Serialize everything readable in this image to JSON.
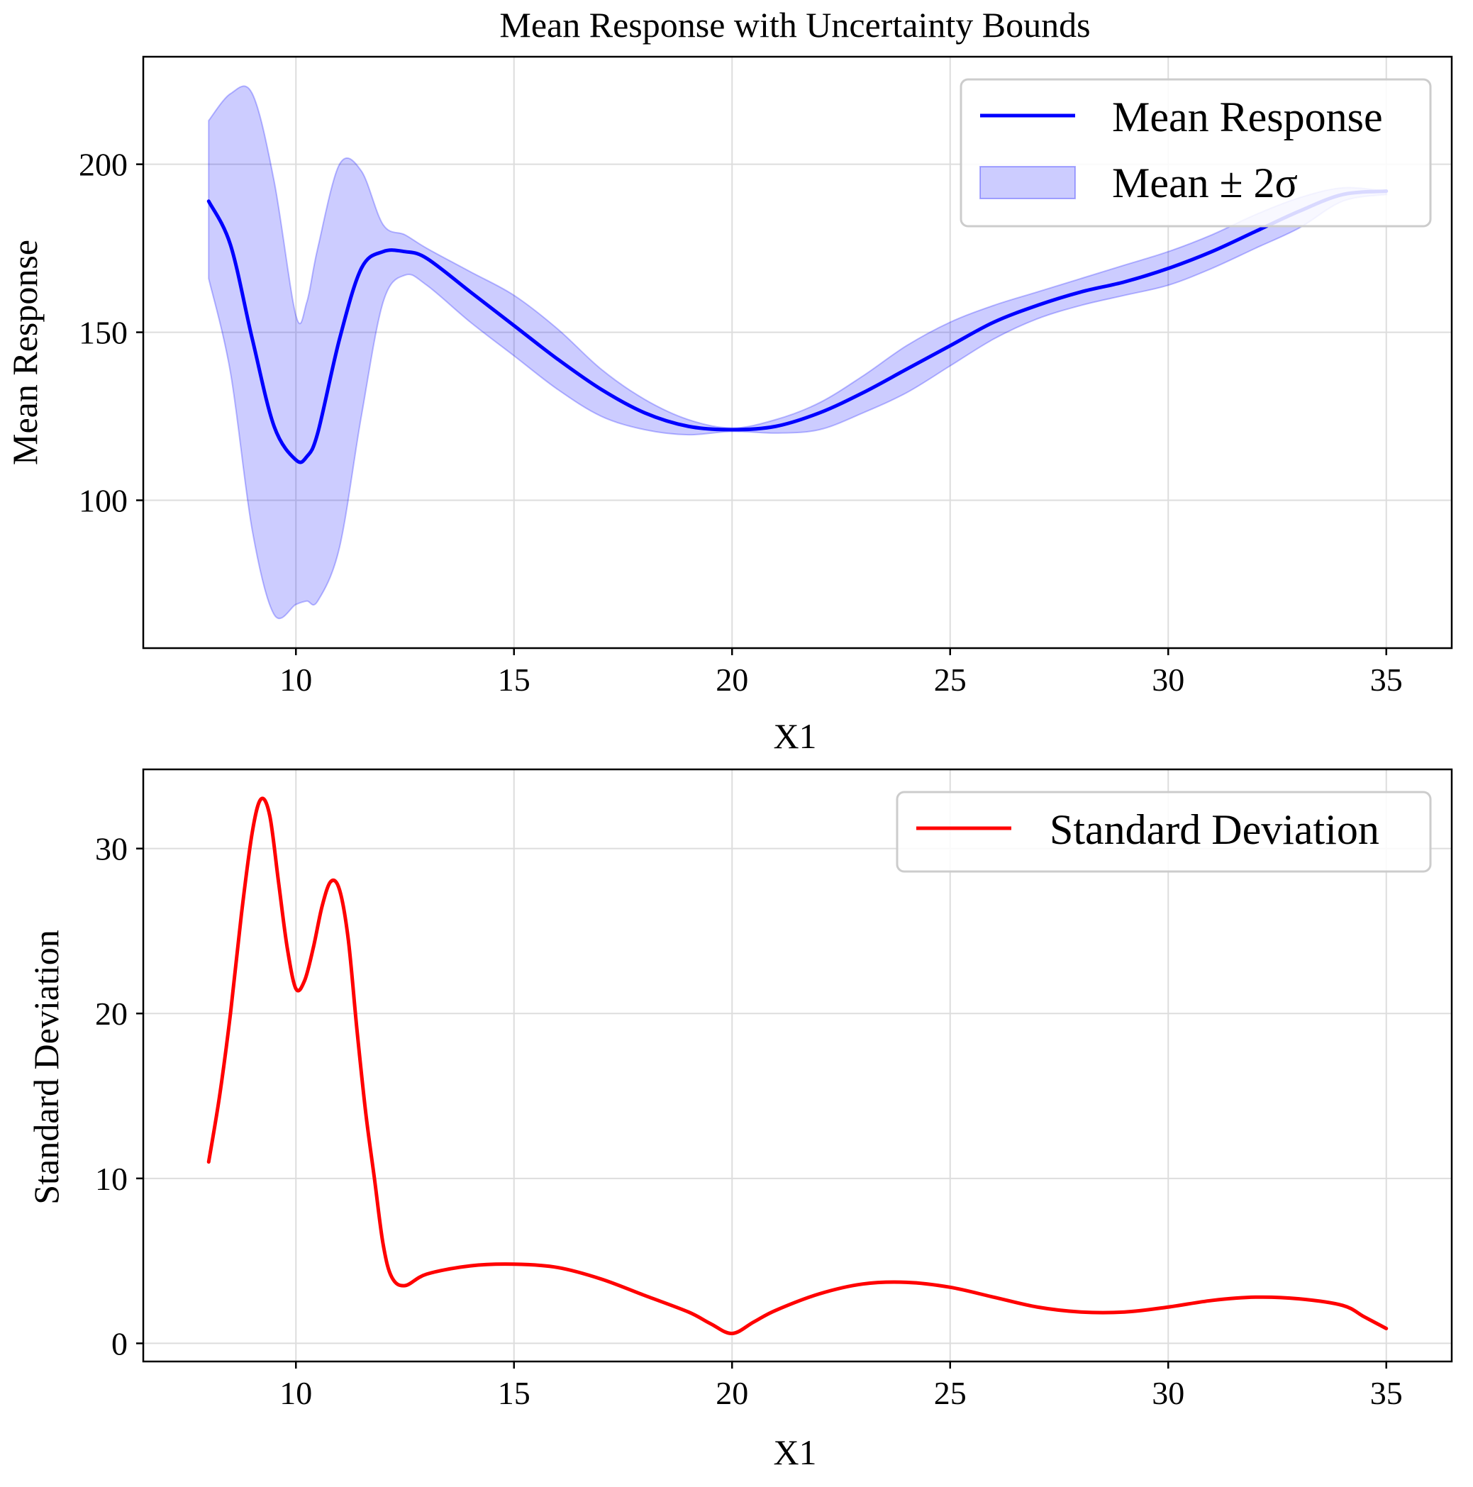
{
  "chart_data": [
    {
      "type": "area",
      "title": "Mean Response with Uncertainty Bounds",
      "xlabel": "X1",
      "ylabel": "Mean Response",
      "xlim": [
        6.5,
        36.5
      ],
      "ylim": [
        56,
        232
      ],
      "xticks": [
        10,
        15,
        20,
        25,
        30,
        35
      ],
      "xtick_labels": [
        "10",
        "15",
        "20",
        "25",
        "30",
        "35"
      ],
      "yticks": [
        100,
        150,
        200
      ],
      "ytick_labels": [
        "100",
        "150",
        "200"
      ],
      "grid": true,
      "legend_position": "top-right",
      "series": [
        {
          "name": "Mean Response",
          "kind": "line",
          "color": "#0000ff",
          "x": [
            8,
            8.5,
            9,
            9.5,
            10,
            10.25,
            10.5,
            11,
            11.5,
            12,
            12.5,
            13,
            14,
            15,
            16,
            17,
            18,
            19,
            20,
            21,
            22,
            23,
            24,
            25,
            26,
            27,
            28,
            29,
            30,
            31,
            32,
            33,
            34,
            35
          ],
          "y": [
            189,
            176,
            148,
            122,
            112,
            113,
            120,
            148,
            169,
            174,
            174,
            172,
            162,
            152,
            142,
            133,
            126,
            122,
            121,
            122,
            126,
            132,
            139,
            146,
            153,
            158,
            162,
            165,
            169,
            174,
            180,
            186,
            191,
            192
          ]
        },
        {
          "name": "Mean ± 2σ",
          "kind": "band",
          "color": "#0000ff",
          "fill_opacity": 0.2,
          "x": [
            8,
            8.5,
            9,
            9.5,
            10,
            10.25,
            10.5,
            11,
            11.5,
            12,
            12.5,
            13,
            14,
            15,
            16,
            17,
            18,
            19,
            20,
            21,
            22,
            23,
            24,
            25,
            26,
            27,
            28,
            29,
            30,
            31,
            32,
            33,
            34,
            35
          ],
          "upper": [
            213,
            221,
            221,
            195,
            155,
            159,
            175,
            200,
            198,
            182,
            179,
            175,
            168,
            161,
            151,
            139,
            130,
            124,
            121.5,
            124,
            129,
            137,
            146,
            153,
            158,
            162,
            166,
            170,
            174,
            179,
            185,
            190,
            193,
            192
          ],
          "lower": [
            166,
            138,
            91,
            66,
            69,
            70,
            70,
            86,
            125,
            159,
            167,
            164,
            153,
            143,
            133,
            125,
            121,
            119.5,
            120.5,
            120,
            121,
            126,
            132,
            140,
            148,
            154,
            158,
            161,
            164,
            169,
            175,
            181,
            189,
            191
          ]
        }
      ]
    },
    {
      "type": "line",
      "title": "",
      "xlabel": "X1",
      "ylabel": "Standard Deviation",
      "xlim": [
        6.5,
        36.5
      ],
      "ylim": [
        -1.1,
        34.8
      ],
      "xticks": [
        10,
        15,
        20,
        25,
        30,
        35
      ],
      "xtick_labels": [
        "10",
        "15",
        "20",
        "25",
        "30",
        "35"
      ],
      "yticks": [
        0,
        10,
        20,
        30
      ],
      "ytick_labels": [
        "0",
        "10",
        "20",
        "30"
      ],
      "grid": true,
      "legend_position": "top-right",
      "series": [
        {
          "name": "Standard Deviation",
          "kind": "line",
          "color": "#ff0000",
          "x": [
            8,
            8.25,
            8.5,
            8.75,
            9,
            9.2,
            9.4,
            9.6,
            9.8,
            10,
            10.2,
            10.4,
            10.6,
            10.8,
            11,
            11.2,
            11.4,
            11.6,
            11.8,
            12,
            12.2,
            12.5,
            13,
            14,
            15,
            16,
            17,
            18,
            19,
            19.5,
            20,
            20.5,
            21,
            22,
            23,
            24,
            25,
            26,
            27,
            28,
            29,
            30,
            31,
            32,
            33,
            34,
            34.5,
            35
          ],
          "y": [
            11,
            15,
            20,
            26,
            31,
            33,
            32,
            28,
            24,
            21.5,
            22,
            24,
            26.5,
            28,
            27.5,
            24.5,
            19,
            14,
            10,
            6,
            4,
            3.5,
            4.2,
            4.7,
            4.8,
            4.6,
            3.9,
            2.9,
            1.9,
            1.2,
            0.6,
            1.3,
            2.0,
            3.0,
            3.6,
            3.7,
            3.4,
            2.8,
            2.2,
            1.9,
            1.9,
            2.2,
            2.6,
            2.8,
            2.7,
            2.3,
            1.6,
            0.9
          ]
        }
      ]
    }
  ]
}
